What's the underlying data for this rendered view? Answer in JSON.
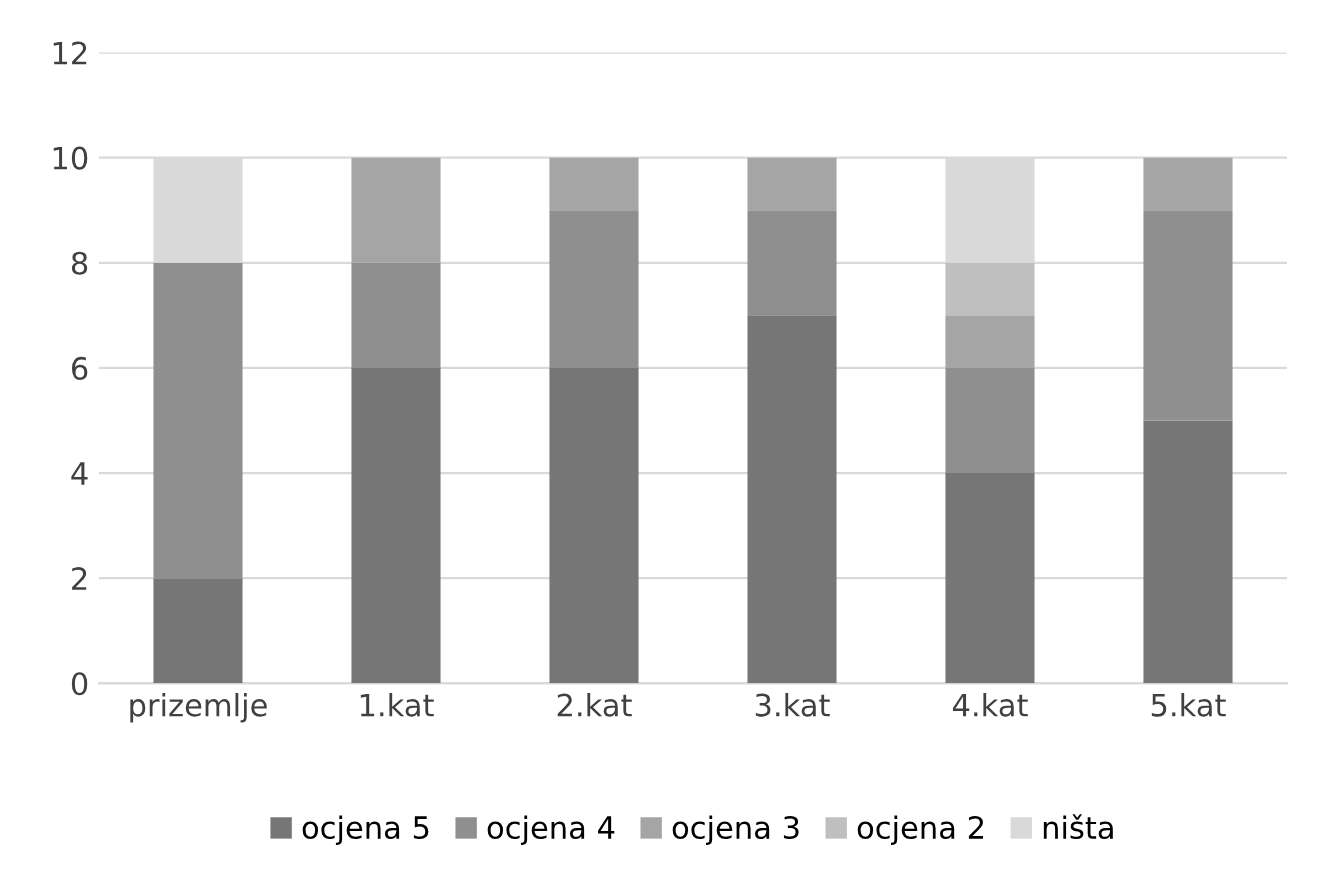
{
  "chart_data": {
    "type": "bar",
    "stacked": true,
    "categories": [
      "prizemlje",
      "1.kat",
      "2.kat",
      "3.kat",
      "4.kat",
      "5.kat"
    ],
    "series": [
      {
        "name": "ocjena 5",
        "color": "#767676",
        "values": [
          2,
          6,
          6,
          7,
          4,
          5
        ]
      },
      {
        "name": "ocjena 4",
        "color": "#8f8f8f",
        "values": [
          6,
          2,
          3,
          2,
          2,
          4
        ]
      },
      {
        "name": "ocjena 3",
        "color": "#a5a5a5",
        "values": [
          0,
          2,
          1,
          1,
          1,
          1
        ]
      },
      {
        "name": "ocjena 2",
        "color": "#bfbfbf",
        "values": [
          0,
          0,
          0,
          0,
          1,
          0
        ]
      },
      {
        "name": "ništa",
        "color": "#d9d9d9",
        "values": [
          2,
          0,
          0,
          0,
          2,
          0
        ]
      }
    ],
    "ylim": [
      0,
      12
    ],
    "yticks": [
      0,
      2,
      4,
      6,
      8,
      10,
      12
    ],
    "grid": "y",
    "legend": "bottom"
  }
}
